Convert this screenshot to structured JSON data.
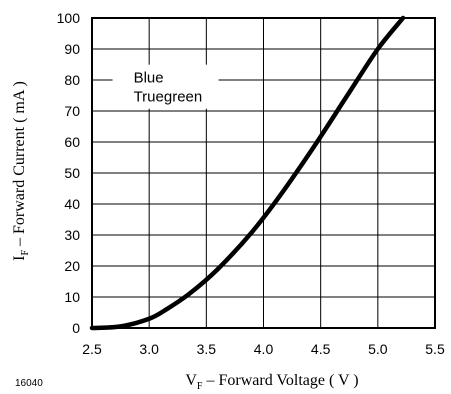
{
  "chart_data": {
    "type": "line",
    "xlim": [
      2.5,
      5.5
    ],
    "ylim": [
      0,
      100
    ],
    "grid": true,
    "x_ticks": [
      "2.5",
      "3.0",
      "3.5",
      "4.0",
      "4.5",
      "5.0",
      "5.5"
    ],
    "y_ticks": [
      "0",
      "10",
      "20",
      "30",
      "40",
      "50",
      "60",
      "70",
      "80",
      "90",
      "100"
    ],
    "xlabel": {
      "main": "V",
      "sub": "F",
      "rest": " – Forward Voltage ( V )"
    },
    "ylabel": {
      "main": "I",
      "sub": "F",
      "rest": " – Forward Current ( mA )"
    },
    "legend": {
      "lines": [
        "Blue",
        "Truegreen"
      ],
      "placement": "top-left"
    },
    "series": [
      {
        "color": "#000000",
        "x": [
          2.5,
          2.75,
          3.0,
          3.15,
          3.35,
          3.6,
          3.9,
          4.15,
          4.45,
          4.75,
          5.0,
          5.22
        ],
        "y": [
          0,
          0.5,
          3,
          6,
          11,
          19,
          31,
          43,
          59,
          76,
          90,
          100
        ]
      }
    ]
  },
  "figure_id": "16040"
}
